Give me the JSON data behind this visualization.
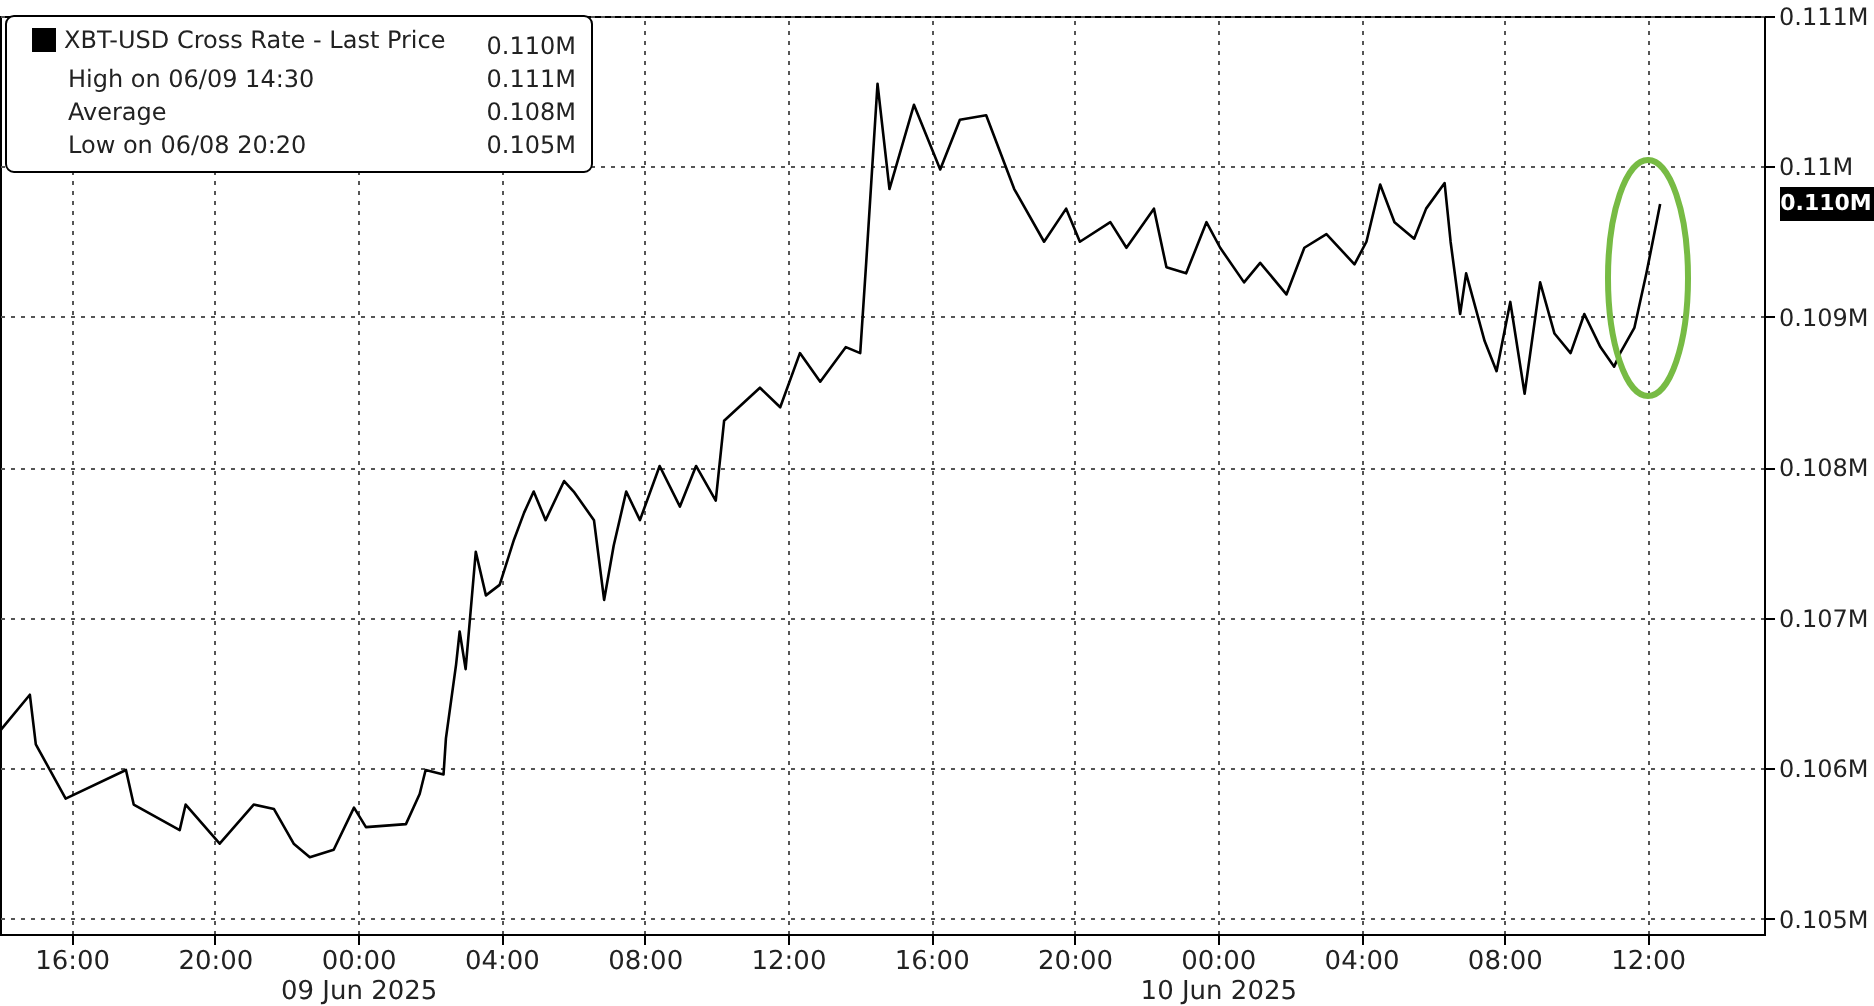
{
  "chart_data": {
    "type": "line",
    "x": [
      "2025-06-08T14:00",
      "2025-06-08T14:50",
      "2025-06-08T15:00",
      "2025-06-08T15:50",
      "2025-06-08T17:31",
      "2025-06-08T17:44",
      "2025-06-08T19:01",
      "2025-06-08T19:11",
      "2025-06-08T20:08",
      "2025-06-08T21:05",
      "2025-06-08T21:39",
      "2025-06-08T22:12",
      "2025-06-08T22:39",
      "2025-06-08T23:19",
      "2025-06-08T23:53",
      "2025-06-09T00:13",
      "2025-06-09T01:20",
      "2025-06-09T01:43",
      "2025-06-09T01:53",
      "2025-06-09T02:23",
      "2025-06-09T02:27",
      "2025-06-09T02:44",
      "2025-06-09T02:50",
      "2025-06-09T03:00",
      "2025-06-09T03:17",
      "2025-06-09T03:34",
      "2025-06-09T03:57",
      "2025-06-09T04:21",
      "2025-06-09T04:38",
      "2025-06-09T04:54",
      "2025-06-09T05:14",
      "2025-06-09T05:45",
      "2025-06-09T06:01",
      "2025-06-09T06:35",
      "2025-06-09T06:52",
      "2025-06-09T07:08",
      "2025-06-09T07:29",
      "2025-06-09T07:52",
      "2025-06-09T08:25",
      "2025-06-09T08:59",
      "2025-06-09T09:26",
      "2025-06-09T09:59",
      "2025-06-09T10:13",
      "2025-06-09T11:13",
      "2025-06-09T11:47",
      "2025-06-09T12:20",
      "2025-06-09T12:54",
      "2025-06-09T13:37",
      "2025-06-09T14:01",
      "2025-06-09T14:11",
      "2025-06-09T14:30",
      "2025-06-09T14:50",
      "2025-06-09T15:31",
      "2025-06-09T16:15",
      "2025-06-09T16:48",
      "2025-06-09T17:32",
      "2025-06-09T18:19",
      "2025-06-09T19:09",
      "2025-06-09T19:46",
      "2025-06-09T20:09",
      "2025-06-09T21:00",
      "2025-06-09T21:27",
      "2025-06-09T22:13",
      "2025-06-09T22:34",
      "2025-06-09T23:07",
      "2025-06-09T23:41",
      "2025-06-10T00:04",
      "2025-06-10T00:44",
      "2025-06-10T01:11",
      "2025-06-10T01:55",
      "2025-06-10T02:25",
      "2025-06-10T03:02",
      "2025-06-10T03:49",
      "2025-06-10T04:09",
      "2025-06-10T04:32",
      "2025-06-10T04:56",
      "2025-06-10T05:29",
      "2025-06-10T05:49",
      "2025-06-10T06:20",
      "2025-06-10T06:30",
      "2025-06-10T06:46",
      "2025-06-10T06:56",
      "2025-06-10T07:27",
      "2025-06-10T07:47",
      "2025-06-10T08:10",
      "2025-06-10T08:34",
      "2025-06-10T09:00",
      "2025-06-10T09:24",
      "2025-06-10T09:51",
      "2025-06-10T10:14",
      "2025-06-10T10:41",
      "2025-06-10T11:04",
      "2025-06-10T11:14",
      "2025-06-10T11:38",
      "2025-06-10T11:58",
      "2025-06-10T12:15",
      "2025-06-10T12:21"
    ],
    "series": [
      {
        "name": "XBT-USD Cross Rate - Last Price",
        "color": "#000000",
        "values": [
          0.10625,
          0.10649,
          0.10616,
          0.1058,
          0.10599,
          0.10576,
          0.10559,
          0.10576,
          0.1055,
          0.10576,
          0.10573,
          0.1055,
          0.10541,
          0.10546,
          0.10574,
          0.10561,
          0.10563,
          0.10583,
          0.10599,
          0.10596,
          0.1062,
          0.10669,
          0.10691,
          0.10666,
          0.10744,
          0.10715,
          0.10722,
          0.10752,
          0.1077,
          0.10784,
          0.10765,
          0.10791,
          0.10784,
          0.10765,
          0.10712,
          0.10748,
          0.10784,
          0.10765,
          0.10801,
          0.10774,
          0.10801,
          0.10778,
          0.10831,
          0.10853,
          0.1084,
          0.10876,
          0.10857,
          0.1088,
          0.10876,
          0.10936,
          0.11055,
          0.10985,
          0.11041,
          0.10998,
          0.11031,
          0.11034,
          0.10985,
          0.1095,
          0.10972,
          0.1095,
          0.10963,
          0.10946,
          0.10972,
          0.10933,
          0.10929,
          0.10963,
          0.10946,
          0.10923,
          0.10936,
          0.10915,
          0.10946,
          0.10955,
          0.10935,
          0.1095,
          0.10988,
          0.10963,
          0.10952,
          0.10972,
          0.10989,
          0.1095,
          0.10902,
          0.10929,
          0.10884,
          0.10864,
          0.1091,
          0.10849,
          0.10923,
          0.10889,
          0.10876,
          0.10902,
          0.1088,
          0.10867,
          0.10876,
          0.10893,
          0.10929,
          0.10963,
          0.10975
        ]
      }
    ],
    "xlim": [
      "2025-06-08T14:00",
      "2025-06-10T15:15"
    ],
    "xticks": [
      {
        "value": "2025-06-08T16:00",
        "label": "16:00"
      },
      {
        "value": "2025-06-08T20:00",
        "label": "20:00"
      },
      {
        "value": "2025-06-09T00:00",
        "label": "00:00\n09 Jun 2025"
      },
      {
        "value": "2025-06-09T04:00",
        "label": "04:00"
      },
      {
        "value": "2025-06-09T08:00",
        "label": "08:00"
      },
      {
        "value": "2025-06-09T12:00",
        "label": "12:00"
      },
      {
        "value": "2025-06-09T16:00",
        "label": "16:00"
      },
      {
        "value": "2025-06-09T20:00",
        "label": "20:00"
      },
      {
        "value": "2025-06-10T00:00",
        "label": "00:00\n10 Jun 2025"
      },
      {
        "value": "2025-06-10T04:00",
        "label": "04:00"
      },
      {
        "value": "2025-06-10T08:00",
        "label": "08:00"
      },
      {
        "value": "2025-06-10T12:00",
        "label": "12:00"
      }
    ],
    "ylim": [
      0.1049,
      0.111
    ],
    "yticks": [
      {
        "value": 0.105,
        "label": "0.105M"
      },
      {
        "value": 0.106,
        "label": "0.106M"
      },
      {
        "value": 0.107,
        "label": "0.107M"
      },
      {
        "value": 0.108,
        "label": "0.108M"
      },
      {
        "value": 0.109,
        "label": "0.109M"
      },
      {
        "value": 0.11,
        "label": "0.11M"
      },
      {
        "value": 0.111,
        "label": "0.111M"
      }
    ],
    "grid": true,
    "legend": "top left",
    "annotations": [
      "0.110M",
      "0.110M",
      "High on 06/09 14:30",
      "0.111M",
      "Average",
      "0.108M",
      "Low on 06/08 20:20",
      "0.105M"
    ]
  }
}
